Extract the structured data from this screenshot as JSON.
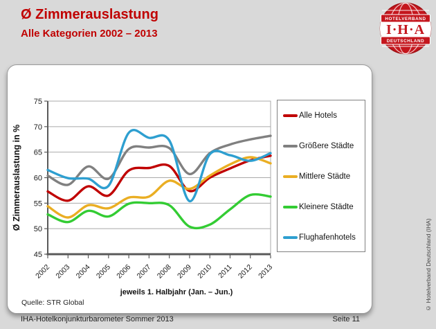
{
  "header": {
    "title": "Ø Zimmerauslastung",
    "subtitle": "Alle Kategorien 2002 – 2013",
    "accent_color": "#C00000"
  },
  "logo": {
    "top_banner": "HOTELVERBAND",
    "center": "I·H·A",
    "bottom_banner": "DEUTSCHLAND",
    "red": "#C4161D"
  },
  "chart_data": {
    "type": "line",
    "categories": [
      "2002",
      "2003",
      "2004",
      "2005",
      "2006",
      "2007",
      "2008",
      "2009",
      "2010",
      "2011",
      "2012",
      "2013"
    ],
    "series": [
      {
        "name": "Alle Hotels",
        "color": "#C00000",
        "values": [
          57.3,
          55.5,
          58.3,
          56.5,
          61.4,
          61.9,
          62.3,
          57.4,
          60.0,
          61.8,
          63.4,
          64.3
        ]
      },
      {
        "name": "Größere Städte",
        "color": "#808080",
        "values": [
          60.4,
          58.6,
          62.2,
          59.8,
          65.6,
          65.9,
          65.8,
          60.7,
          64.8,
          66.5,
          67.5,
          68.2
        ]
      },
      {
        "name": "Mittlere Städte",
        "color": "#EAAE23",
        "values": [
          54.4,
          52.2,
          54.6,
          54.0,
          56.1,
          56.3,
          59.4,
          57.8,
          60.4,
          62.6,
          64.0,
          62.8
        ]
      },
      {
        "name": "Kleinere Städte",
        "color": "#33CC33",
        "values": [
          52.8,
          51.3,
          53.5,
          52.4,
          54.9,
          55.0,
          54.6,
          50.4,
          50.8,
          53.8,
          56.6,
          56.3
        ]
      },
      {
        "name": "Flughafenhotels",
        "color": "#2E9FD0",
        "values": [
          61.5,
          59.9,
          59.8,
          58.4,
          68.8,
          67.8,
          67.3,
          55.4,
          64.6,
          64.4,
          63.3,
          64.8
        ]
      }
    ],
    "title": "",
    "xlabel": "",
    "ylabel": "Ø Zimmerauslastung in %",
    "ylim": [
      45,
      75
    ],
    "ytick_step": 5,
    "grid": true,
    "legend_position": "right",
    "caption": "jeweils 1. Halbjahr (Jan. – Jun.)",
    "source": "Quelle: STR Global"
  },
  "footer": {
    "left": "IHA-Hotelkonjunkturbarometer Sommer 2013",
    "right": "Seite 11"
  },
  "sidebar_note": "© Hotelverband Deutschland (IHA)"
}
